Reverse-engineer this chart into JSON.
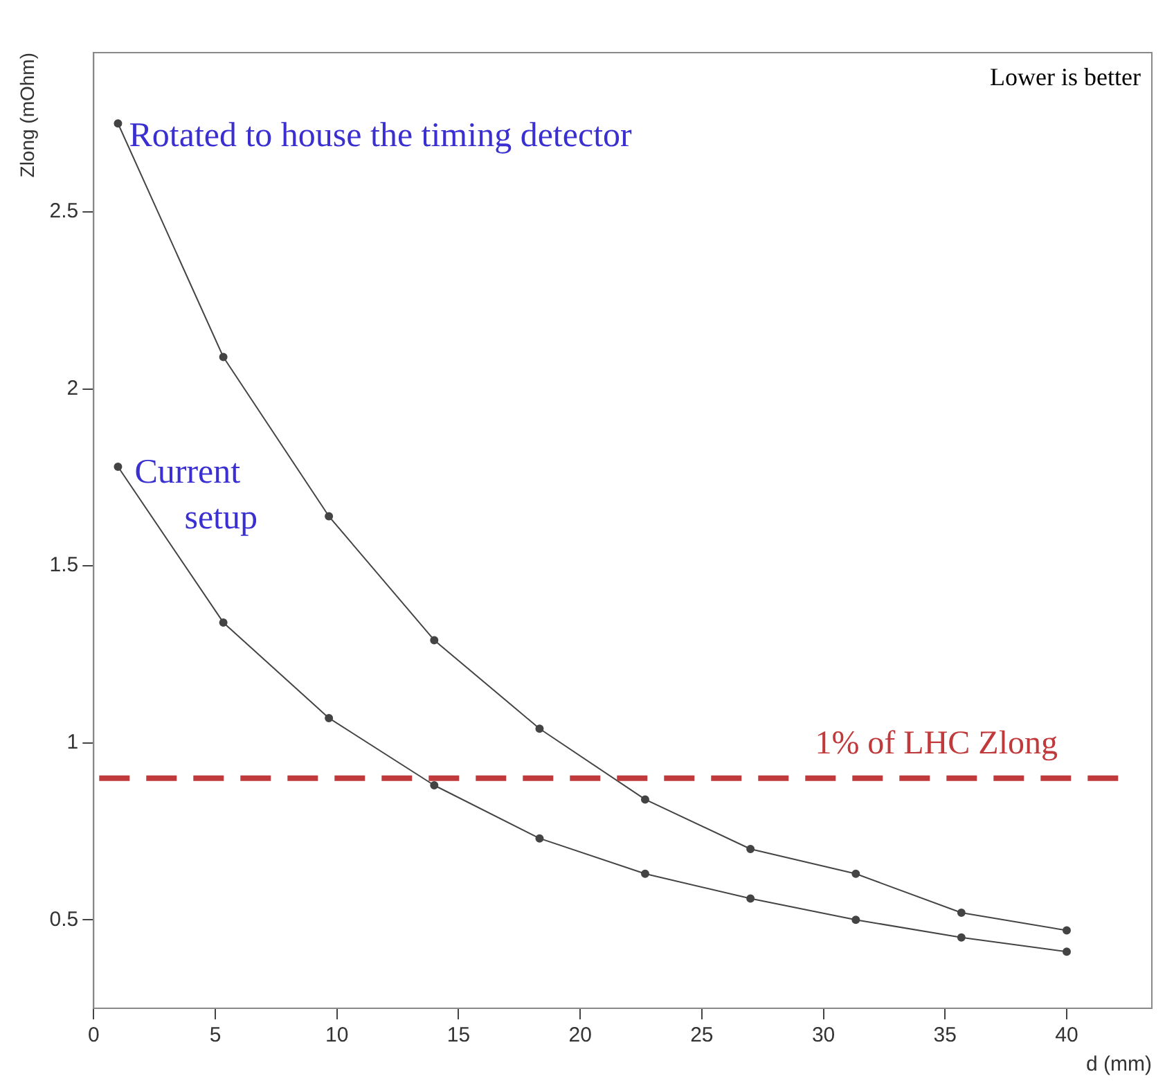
{
  "chart_data": {
    "type": "line",
    "xlabel": "d (mm)",
    "ylabel": "Zlong (mOhm)",
    "x": [
      1,
      5.33,
      9.67,
      14,
      18.33,
      22.67,
      27,
      31.33,
      35.67,
      40
    ],
    "series": [
      {
        "name": "Rotated to house the timing detector",
        "color": "#444444",
        "values": [
          2.75,
          2.09,
          1.64,
          1.29,
          1.04,
          0.84,
          0.7,
          0.63,
          0.52,
          0.47
        ]
      },
      {
        "name": "Current setup",
        "color": "#444444",
        "values": [
          1.78,
          1.34,
          1.07,
          0.88,
          0.73,
          0.63,
          0.56,
          0.5,
          0.45,
          0.41
        ]
      }
    ],
    "xlim": [
      0,
      43.5
    ],
    "xticks": [
      0,
      5,
      10,
      15,
      20,
      25,
      30,
      35,
      40
    ],
    "ylim": [
      0.25,
      2.95
    ],
    "yticks": [
      0.5,
      1,
      1.5,
      2,
      2.5
    ],
    "ref_lines": [
      {
        "axis": "y",
        "value": 0.9,
        "label": "1% of LHC Zlong",
        "color": "#c0393b",
        "line_style": "dashed"
      }
    ],
    "annotations": [
      "Lower is better"
    ],
    "grid": false,
    "legend": false,
    "marker": "circle",
    "line_style": "solid"
  }
}
